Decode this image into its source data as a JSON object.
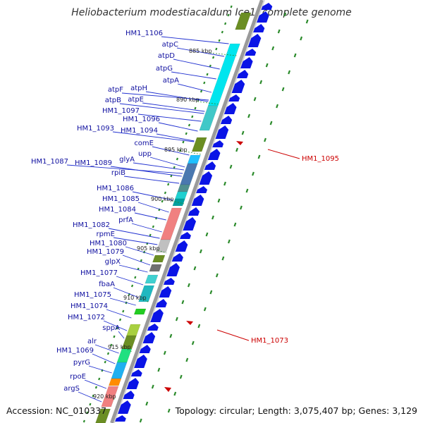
{
  "title": "Heliobacterium modestiacaldum Ice1, complete genome",
  "footer": {
    "accession": "Accession: NC_010337",
    "stats": "Topology: circular; Length: 3,075,407 bp; Genes: 3,129"
  },
  "colors": {
    "label": "#1010a0",
    "highlight": "#cc0000",
    "forward_arrow": "#0a14e6",
    "backbone": "#8c8c8c",
    "dash": "#2a8a2a"
  },
  "kbp_marks": [
    {
      "label": "885 kbp"
    },
    {
      "label": "890 kbp"
    },
    {
      "label": "895 kbp"
    },
    {
      "label": "900 kbp"
    },
    {
      "label": "905 kbp"
    },
    {
      "label": "910 kbp"
    },
    {
      "label": "915 kbp"
    },
    {
      "label": "920 kbp"
    }
  ],
  "gene_labels": [
    "HM1_1106",
    "atpC",
    "atpD",
    "atpG",
    "atpA",
    "atpH",
    "atpF",
    "atpE",
    "atpB",
    "HM1_1097",
    "HM1_1096",
    "HM1_1093",
    "HM1_1094",
    "comE",
    "upp",
    "glyA",
    "HM1_1087",
    "HM1_1089",
    "rpiB",
    "HM1_1086",
    "HM1_1085",
    "HM1_1084",
    "prfA",
    "HM1_1082",
    "rpmE",
    "HM1_1080",
    "HM1_1079",
    "glpX",
    "HM1_1077",
    "fbaA",
    "HM1_1075",
    "HM1_1074",
    "HM1_1072",
    "sppA",
    "alr",
    "HM1_1069",
    "pyrG",
    "rpoE",
    "argS"
  ],
  "highlighted_genes": [
    "HM1_1095",
    "HM1_1073"
  ]
}
